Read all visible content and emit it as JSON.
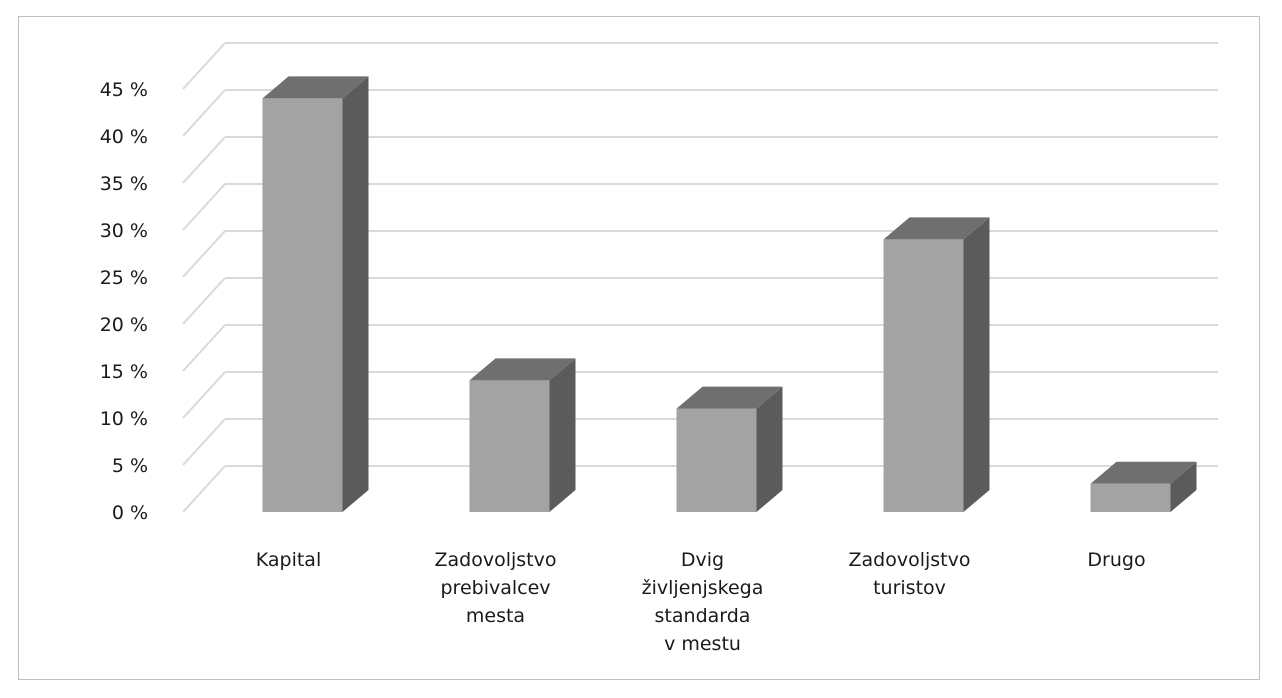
{
  "chart_data": {
    "type": "bar",
    "style": "3d-column",
    "categories": [
      [
        "Kapital"
      ],
      [
        "Zadovoljstvo",
        "prebivalcev",
        "mesta"
      ],
      [
        "Dvig",
        "življenjskega",
        "standarda",
        "v mestu"
      ],
      [
        "Zadovoljstvo",
        "turistov"
      ],
      [
        "Drugo"
      ]
    ],
    "values": [
      44,
      14,
      11,
      29,
      3
    ],
    "ylim": [
      0,
      45
    ],
    "yticks": [
      "0 %",
      "5 %",
      "10 %",
      "15 %",
      "20 %",
      "25 %",
      "30 %",
      "35 %",
      "40 %",
      "45 %"
    ],
    "grid": true,
    "legend": "none",
    "title": "",
    "xlabel": "",
    "ylabel": ""
  },
  "colors": {
    "bar_front": "#a3a3a3",
    "bar_side": "#5b5b5b",
    "bar_top": "#6f6f6f",
    "grid": "#d9d9d9",
    "frame": "#bfbfbf"
  }
}
